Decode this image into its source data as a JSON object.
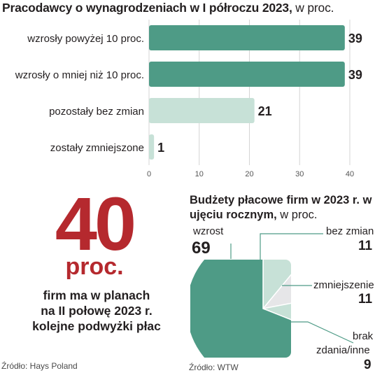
{
  "chart_data": [
    {
      "type": "bar",
      "orientation": "horizontal",
      "title": "Pracodawcy o wynagrodzeniach w I półroczu 2023,",
      "title_unit": "w proc.",
      "categories": [
        "wzrosły powyżej 10 proc.",
        "wzrosły o mniej niż 10 proc.",
        "pozostały bez zmian",
        "zostały zmniejszone"
      ],
      "values": [
        39,
        39,
        21,
        1
      ],
      "value_labels": [
        "39",
        "39",
        "21",
        "1"
      ],
      "bar_colors": [
        "#4e9b86",
        "#4e9b86",
        "#c7e1d7",
        "#c7e1d7"
      ],
      "xlim": [
        0,
        40
      ],
      "xticks": [
        "0",
        "10",
        "20",
        "30",
        "40"
      ],
      "grid": true,
      "source": "Źródło: Hays Poland"
    },
    {
      "type": "pie",
      "title": "Budżety płacowe firm w 2023 r. w ujęciu rocznym,",
      "title_unit": "w proc.",
      "labels": [
        "wzrost",
        "bez zmian",
        "zmniejszenie",
        "brak zdania/inne"
      ],
      "label_lines": [
        [
          "wzrost"
        ],
        [
          "bez zmian"
        ],
        [
          "zmniejszenie"
        ],
        [
          "brak",
          "zdania/inne"
        ]
      ],
      "values": [
        69,
        11,
        11,
        9
      ],
      "value_labels": [
        "69",
        "11",
        "11",
        "9"
      ],
      "colors": [
        "#4e9b86",
        "#c7e1d7",
        "#e6e6e8",
        "#c7e1d7"
      ],
      "source": "Źródło: WTW"
    }
  ],
  "highlight": {
    "number": "40",
    "unit": "proc.",
    "lines": [
      "firm ma w planach",
      "na II połowę 2023 r.",
      "kolejne podwyżki płac"
    ],
    "accent_color": "#b5292e"
  }
}
